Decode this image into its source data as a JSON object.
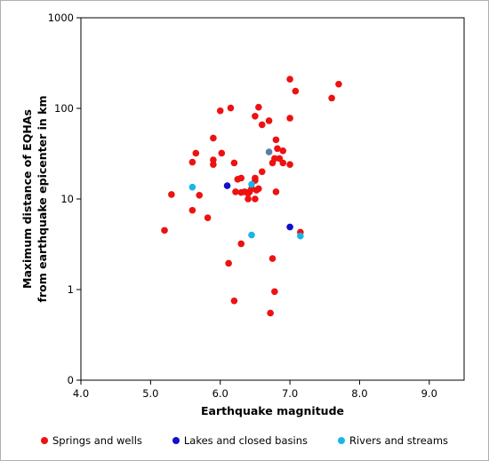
{
  "chart_data": {
    "type": "scatter",
    "title": "",
    "xlabel": "Earthquake magnitude",
    "ylabel_lines": [
      "Maximum distance of EQHAs",
      "from earthquake epicenter in km"
    ],
    "xlim": [
      4.0,
      9.5
    ],
    "x_ticks": [
      "4.0",
      "5.0",
      "6.0",
      "7.0",
      "8.0",
      "9.0"
    ],
    "y_scale": "log",
    "ylim": [
      0.1,
      1000
    ],
    "y_ticks": [
      {
        "value": 1000,
        "label": "1000"
      },
      {
        "value": 100,
        "label": "100"
      },
      {
        "value": 10,
        "label": "10"
      },
      {
        "value": 1,
        "label": "1"
      },
      {
        "value": 0.1,
        "label": "0"
      }
    ],
    "grid": false,
    "legend_position": "bottom",
    "series": [
      {
        "name": "Springs and wells",
        "color": "#ee1111",
        "points": [
          [
            5.2,
            4.5
          ],
          [
            5.3,
            11.2
          ],
          [
            5.6,
            7.5
          ],
          [
            5.6,
            25.5
          ],
          [
            5.65,
            32.0
          ],
          [
            5.7,
            11.0
          ],
          [
            5.82,
            6.2
          ],
          [
            5.9,
            47.0
          ],
          [
            5.9,
            27.0
          ],
          [
            5.9,
            24.0
          ],
          [
            6.0,
            94.0
          ],
          [
            6.02,
            32.0
          ],
          [
            6.15,
            101.0
          ],
          [
            6.2,
            25.0
          ],
          [
            6.22,
            12.0
          ],
          [
            6.25,
            16.5
          ],
          [
            6.2,
            0.75
          ],
          [
            6.12,
            1.95
          ],
          [
            6.3,
            3.2
          ],
          [
            6.3,
            17.0
          ],
          [
            6.3,
            11.8
          ],
          [
            6.35,
            12.0
          ],
          [
            6.4,
            11.5
          ],
          [
            6.4,
            10.0
          ],
          [
            6.42,
            12.0
          ],
          [
            6.45,
            13.0
          ],
          [
            6.5,
            17.0
          ],
          [
            6.52,
            12.5
          ],
          [
            6.55,
            13.0
          ],
          [
            6.5,
            16.0
          ],
          [
            6.5,
            10.0
          ],
          [
            6.5,
            82.0
          ],
          [
            6.55,
            103.0
          ],
          [
            6.6,
            66.0
          ],
          [
            6.6,
            20.0
          ],
          [
            6.7,
            73.0
          ],
          [
            6.72,
            0.55
          ],
          [
            6.75,
            2.2
          ],
          [
            6.78,
            0.95
          ],
          [
            6.75,
            25.0
          ],
          [
            6.78,
            28.0
          ],
          [
            6.8,
            45.0
          ],
          [
            6.82,
            36.0
          ],
          [
            6.8,
            12.0
          ],
          [
            6.85,
            28.0
          ],
          [
            6.9,
            34.0
          ],
          [
            6.9,
            25.0
          ],
          [
            7.0,
            24.0
          ],
          [
            7.0,
            78.0
          ],
          [
            7.0,
            210.0
          ],
          [
            7.08,
            155.0
          ],
          [
            7.15,
            4.3
          ],
          [
            7.6,
            130.0
          ],
          [
            7.7,
            185.0
          ]
        ]
      },
      {
        "name": "Lakes and closed basins",
        "color": "#1010cc",
        "points": [
          [
            6.1,
            14.0
          ],
          [
            7.0,
            4.9
          ]
        ]
      },
      {
        "name": "Rivers and streams",
        "color": "#19b5e6",
        "points": [
          [
            5.6,
            13.5
          ],
          [
            6.45,
            14.5
          ],
          [
            6.45,
            4.0
          ],
          [
            7.15,
            3.9
          ]
        ]
      },
      {
        "name": "",
        "color": "#5a7fa6",
        "points": [
          [
            6.7,
            33.0
          ]
        ]
      }
    ]
  }
}
